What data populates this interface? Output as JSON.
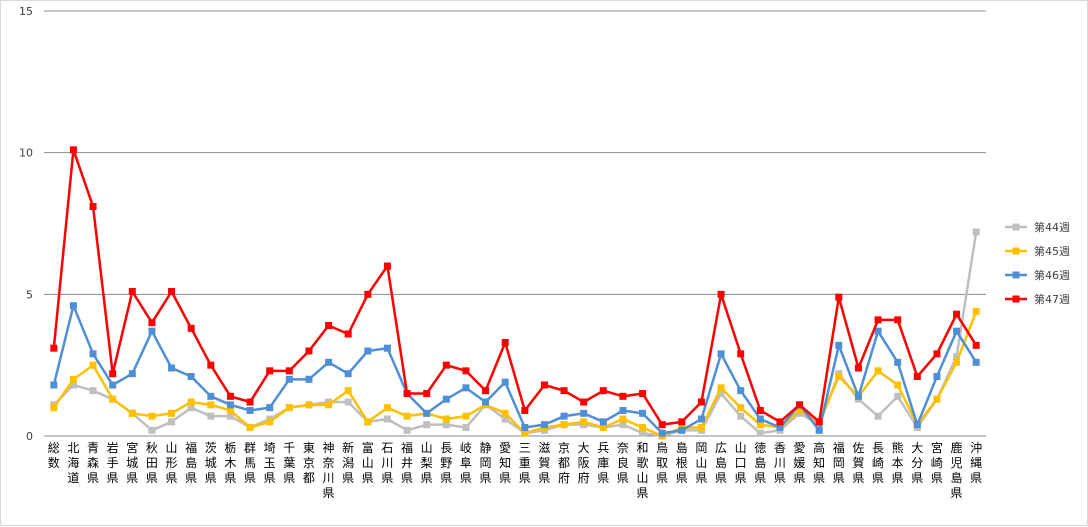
{
  "chart_data": {
    "type": "line",
    "title": "",
    "xlabel": "",
    "ylabel": "",
    "ylim": [
      0,
      15
    ],
    "yticks": [
      0,
      5,
      10,
      15
    ],
    "grid": true,
    "legend_position": "right",
    "categories": [
      "総数",
      "北海道",
      "青森県",
      "岩手県",
      "宮城県",
      "秋田県",
      "山形県",
      "福島県",
      "茨城県",
      "栃木県",
      "群馬県",
      "埼玉県",
      "千葉県",
      "東京都",
      "神奈川県",
      "新潟県",
      "富山県",
      "石川県",
      "福井県",
      "山梨県",
      "長野県",
      "岐阜県",
      "静岡県",
      "愛知県",
      "三重県",
      "滋賀県",
      "京都府",
      "大阪府",
      "兵庫県",
      "奈良県",
      "和歌山県",
      "鳥取県",
      "島根県",
      "岡山県",
      "広島県",
      "山口県",
      "徳島県",
      "香川県",
      "愛媛県",
      "高知県",
      "福岡県",
      "佐賀県",
      "長崎県",
      "熊本県",
      "大分県",
      "宮崎県",
      "鹿児島県",
      "沖縄県"
    ],
    "series": [
      {
        "name": "第44週",
        "color": "#bfbfbf",
        "values": [
          1.1,
          1.8,
          1.6,
          1.3,
          0.8,
          0.2,
          0.5,
          1.0,
          0.7,
          0.7,
          0.3,
          0.6,
          1.0,
          1.1,
          1.2,
          1.2,
          0.5,
          0.6,
          0.2,
          0.4,
          0.4,
          0.3,
          1.1,
          0.6,
          0.1,
          0.2,
          0.4,
          0.4,
          0.3,
          0.4,
          0.1,
          0.0,
          0.2,
          0.2,
          1.5,
          0.7,
          0.1,
          0.2,
          0.8,
          0.4,
          2.2,
          1.3,
          0.7,
          1.4,
          0.3,
          1.3,
          2.8,
          7.2
        ]
      },
      {
        "name": "第45週",
        "color": "#ffc000",
        "values": [
          1.0,
          2.0,
          2.5,
          1.3,
          0.8,
          0.7,
          0.8,
          1.2,
          1.1,
          0.9,
          0.3,
          0.5,
          1.0,
          1.1,
          1.1,
          1.6,
          0.5,
          1.0,
          0.7,
          0.8,
          0.6,
          0.7,
          1.1,
          0.8,
          0.1,
          0.3,
          0.4,
          0.5,
          0.3,
          0.6,
          0.3,
          0.0,
          0.3,
          0.3,
          1.7,
          1.0,
          0.4,
          0.3,
          0.9,
          0.5,
          2.1,
          1.4,
          2.3,
          1.8,
          0.4,
          1.3,
          2.6,
          4.4
        ]
      },
      {
        "name": "第46週",
        "color": "#4f8fd6",
        "values": [
          1.8,
          4.6,
          2.9,
          1.8,
          2.2,
          3.7,
          2.4,
          2.1,
          1.4,
          1.1,
          0.9,
          1.0,
          2.0,
          2.0,
          2.6,
          2.2,
          3.0,
          3.1,
          1.5,
          0.8,
          1.3,
          1.7,
          1.2,
          1.9,
          0.3,
          0.4,
          0.7,
          0.8,
          0.5,
          0.9,
          0.8,
          0.1,
          0.2,
          0.6,
          2.9,
          1.6,
          0.6,
          0.3,
          1.1,
          0.2,
          3.2,
          1.4,
          3.7,
          2.6,
          0.4,
          2.1,
          3.7,
          2.6
        ]
      },
      {
        "name": "第47週",
        "color": "#ff0000",
        "values": [
          3.1,
          10.1,
          8.1,
          2.2,
          5.1,
          4.0,
          5.1,
          3.8,
          2.5,
          1.4,
          1.2,
          2.3,
          2.3,
          3.0,
          3.9,
          3.6,
          5.0,
          6.0,
          1.5,
          1.5,
          2.5,
          2.3,
          1.6,
          3.3,
          0.9,
          1.8,
          1.6,
          1.2,
          1.6,
          1.4,
          1.5,
          0.4,
          0.5,
          1.2,
          5.0,
          2.9,
          0.9,
          0.5,
          1.1,
          0.5,
          4.9,
          2.4,
          4.1,
          4.1,
          2.1,
          2.9,
          4.3,
          3.2
        ]
      }
    ]
  }
}
